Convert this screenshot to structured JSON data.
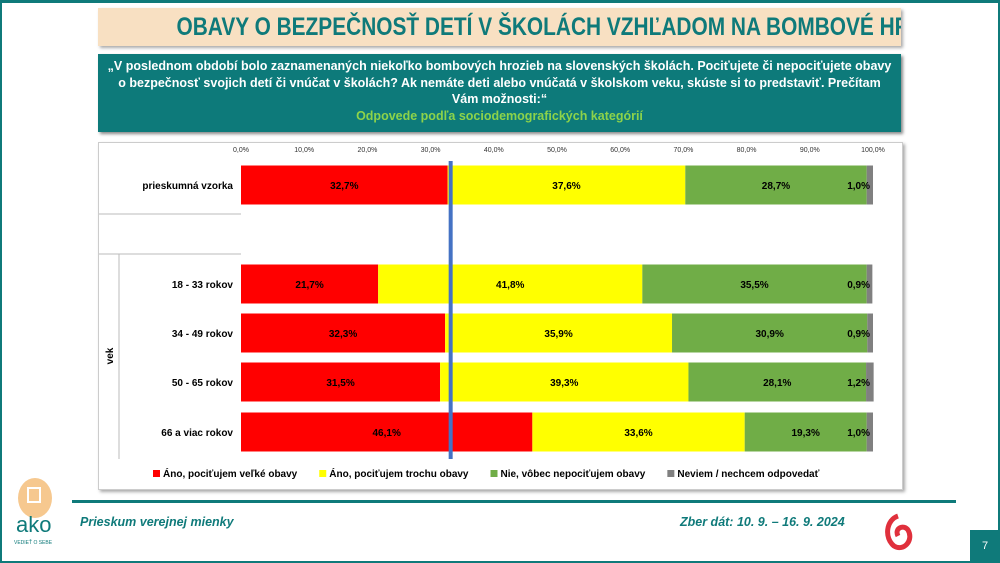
{
  "title": "OBAVY O BEZPEČNOSŤ DETÍ V ŠKOLÁCH VZHĽADOM NA BOMBOVÉ HROZBY",
  "question": {
    "line1": "„V poslednom období bolo zaznamenaných niekoľko bombových hrozieb na slovenských školách. Pociťujete či nepociťujete obavy",
    "line2": "o bezpečnosť svojich detí či vnúčat v školách? Ak nemáte deti alebo vnúčatá v školskom veku, skúste si to predstaviť. Prečítam",
    "line3": "Vám možnosti:“",
    "subtitle": "Odpovede podľa sociodemografických kategórií"
  },
  "chart_data": {
    "type": "bar",
    "orientation": "horizontal",
    "stacked": true,
    "xlim": [
      0,
      100
    ],
    "tick_labels": [
      "0,0%",
      "10,0%",
      "20,0%",
      "30,0%",
      "40,0%",
      "50,0%",
      "60,0%",
      "70,0%",
      "80,0%",
      "90,0%",
      "100,0%"
    ],
    "group_label": "vek",
    "categories": [
      "prieskumná vzorka",
      "18 - 33 rokov",
      "34 - 49 rokov",
      "50 - 65 rokov",
      "66 a viac rokov"
    ],
    "series": [
      {
        "name": "Áno, pociťujem veľké obavy",
        "color": "#ff0000",
        "values": [
          32.7,
          21.7,
          32.3,
          31.5,
          46.1
        ],
        "labels": [
          "32,7%",
          "21,7%",
          "32,3%",
          "31,5%",
          "46,1%"
        ]
      },
      {
        "name": "Áno, pociťujem trochu obavy",
        "color": "#ffff00",
        "values": [
          37.6,
          41.8,
          35.9,
          39.3,
          33.6
        ],
        "labels": [
          "37,6%",
          "41,8%",
          "35,9%",
          "39,3%",
          "33,6%"
        ]
      },
      {
        "name": "Nie, vôbec nepociťujem obavy",
        "color": "#70ad47",
        "values": [
          28.7,
          35.5,
          30.9,
          28.1,
          19.3
        ],
        "labels": [
          "28,7%",
          "35,5%",
          "30,9%",
          "28,1%",
          "19,3%"
        ]
      },
      {
        "name": "Neviem / nechcem odpovedať",
        "color": "#808080",
        "values": [
          1.0,
          0.9,
          0.9,
          1.2,
          1.0
        ],
        "labels": [
          "1,0%",
          "0,9%",
          "0,9%",
          "1,2%",
          "1,0%"
        ]
      }
    ],
    "reference_line": {
      "value": 32.7,
      "color": "#4472c4"
    },
    "legend": "bottom"
  },
  "footer": {
    "left": "Prieskum verejnej mienky",
    "right": "Zber dát: 10. 9. – 16. 9. 2024",
    "page": "7",
    "logo": "ako",
    "logo_tag": "VEDIEŤ O SEBE"
  }
}
